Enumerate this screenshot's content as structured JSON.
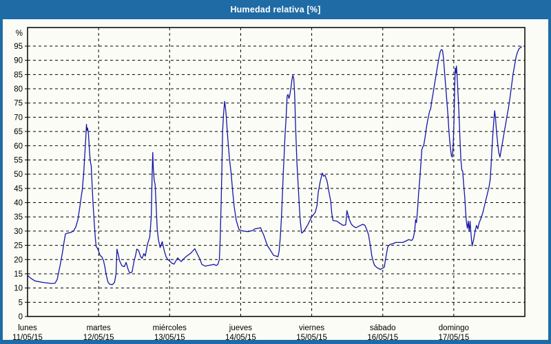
{
  "window": {
    "title": "Humedad relativa [%]"
  },
  "colors": {
    "frame_blue": "#1F6BA5",
    "background": "#FAFCF5",
    "grid_black": "#000000",
    "series_blue": "#1414A8",
    "axis_text": "#000000",
    "title_text": "#FFFFFF"
  },
  "chart_data": {
    "type": "line",
    "title": "Humedad relativa [%]",
    "ylabel": "%",
    "xlabel": "",
    "grid": "dashed",
    "legend_position": "none",
    "y_axis": {
      "min": 0,
      "max": 101.5,
      "tick_step": 5,
      "ticks": [
        0,
        5,
        10,
        15,
        20,
        25,
        30,
        35,
        40,
        45,
        50,
        55,
        60,
        65,
        70,
        75,
        80,
        85,
        90,
        95
      ]
    },
    "x_axis": {
      "unit": "hours_from_monday_00:00",
      "range_hours": [
        0,
        168
      ],
      "days": [
        {
          "name": "lunes",
          "date": "11/05/15"
        },
        {
          "name": "martes",
          "date": "12/05/15"
        },
        {
          "name": "miércoles",
          "date": "13/05/15"
        },
        {
          "name": "jueves",
          "date": "14/05/15"
        },
        {
          "name": "viernes",
          "date": "15/05/15"
        },
        {
          "name": "sábado",
          "date": "16/05/15"
        },
        {
          "name": "domingo",
          "date": "17/05/15"
        }
      ]
    },
    "series": [
      {
        "name": "Humedad relativa",
        "unit": "%",
        "color": "#1414A8",
        "points": [
          [
            0,
            14.5
          ],
          [
            1,
            13.5
          ],
          [
            2.5,
            12.5
          ],
          [
            5,
            12
          ],
          [
            8,
            11.6
          ],
          [
            9.3,
            11.7
          ],
          [
            10,
            13
          ],
          [
            11,
            18
          ],
          [
            11.8,
            22.5
          ],
          [
            12.3,
            26
          ],
          [
            12.8,
            29
          ],
          [
            13.5,
            29.3
          ],
          [
            14.5,
            29.5
          ],
          [
            15.5,
            30
          ],
          [
            16.3,
            31.5
          ],
          [
            17,
            34
          ],
          [
            17.8,
            39.5
          ],
          [
            18.2,
            42.5
          ],
          [
            18.5,
            44.5
          ],
          [
            19,
            51
          ],
          [
            19.4,
            58
          ],
          [
            19.8,
            65
          ],
          [
            19.9,
            67.5
          ],
          [
            20.1,
            65.4
          ],
          [
            20.3,
            66.2
          ],
          [
            20.6,
            64
          ],
          [
            20.9,
            58.5
          ],
          [
            21.2,
            54.5
          ],
          [
            21.5,
            53
          ],
          [
            21.8,
            46.5
          ],
          [
            22.1,
            40
          ],
          [
            22.5,
            33.5
          ],
          [
            22.9,
            27.5
          ],
          [
            23.2,
            24.5
          ],
          [
            23.6,
            24
          ],
          [
            24,
            23
          ],
          [
            24.5,
            21.5
          ],
          [
            25.2,
            20.8
          ],
          [
            25.7,
            19.5
          ],
          [
            26.1,
            17.5
          ],
          [
            26.6,
            14.5
          ],
          [
            27.2,
            12
          ],
          [
            27.8,
            11.3
          ],
          [
            28.7,
            11.2
          ],
          [
            29.4,
            12
          ],
          [
            29.9,
            15
          ],
          [
            30.2,
            23.7
          ],
          [
            30.6,
            22
          ],
          [
            31.1,
            19.5
          ],
          [
            31.9,
            17.8
          ],
          [
            32.7,
            17.5
          ],
          [
            33.3,
            19
          ],
          [
            34,
            16.5
          ],
          [
            34.5,
            15.3
          ],
          [
            35.3,
            15.6
          ],
          [
            36,
            19.5
          ],
          [
            36.5,
            21.5
          ],
          [
            36.9,
            23.7
          ],
          [
            37.5,
            23.2
          ],
          [
            38.2,
            21
          ],
          [
            38.7,
            20.4
          ],
          [
            39.3,
            22.1
          ],
          [
            39.8,
            21.2
          ],
          [
            40.5,
            25.4
          ],
          [
            41.3,
            28
          ],
          [
            41.8,
            35
          ],
          [
            42.1,
            50
          ],
          [
            42.3,
            57.6
          ],
          [
            42.5,
            52
          ],
          [
            42.8,
            47.8
          ],
          [
            43.1,
            46.5
          ],
          [
            43.4,
            40
          ],
          [
            43.8,
            31
          ],
          [
            44.2,
            27
          ],
          [
            44.8,
            24.2
          ],
          [
            45.5,
            26.3
          ],
          [
            46.2,
            23
          ],
          [
            46.8,
            21
          ],
          [
            47.4,
            20
          ],
          [
            48,
            19.5
          ],
          [
            48.8,
            18.7
          ],
          [
            49.5,
            18.4
          ],
          [
            50.7,
            20.6
          ],
          [
            51.9,
            19.3
          ],
          [
            53.5,
            21
          ],
          [
            55.1,
            22.2
          ],
          [
            56.5,
            23.8
          ],
          [
            58.2,
            20.2
          ],
          [
            58.9,
            18.3
          ],
          [
            60,
            17.7
          ],
          [
            61.5,
            18
          ],
          [
            63,
            18.3
          ],
          [
            63.7,
            17.9
          ],
          [
            64.3,
            18.3
          ],
          [
            64.8,
            20
          ],
          [
            65.1,
            28
          ],
          [
            65.4,
            40
          ],
          [
            65.7,
            55
          ],
          [
            65.9,
            65
          ],
          [
            66.2,
            71
          ],
          [
            66.6,
            75.6
          ],
          [
            66.9,
            73
          ],
          [
            67.1,
            70.6
          ],
          [
            67.4,
            66
          ],
          [
            67.7,
            62
          ],
          [
            68.2,
            55.6
          ],
          [
            68.8,
            50
          ],
          [
            69.3,
            44
          ],
          [
            69.8,
            38.6
          ],
          [
            70.5,
            33.8
          ],
          [
            71.4,
            30.6
          ],
          [
            72,
            30.3
          ],
          [
            73,
            30
          ],
          [
            74.5,
            29.8
          ],
          [
            76,
            30.2
          ],
          [
            76.8,
            30.8
          ],
          [
            78,
            31
          ],
          [
            78.7,
            31.2
          ],
          [
            79.8,
            28.6
          ],
          [
            81,
            25
          ],
          [
            82.1,
            23.2
          ],
          [
            83.1,
            21.5
          ],
          [
            84,
            21.2
          ],
          [
            84.6,
            21
          ],
          [
            85,
            23
          ],
          [
            85.4,
            28
          ],
          [
            85.8,
            35
          ],
          [
            86.1,
            42.5
          ],
          [
            86.4,
            50.5
          ],
          [
            86.7,
            57
          ],
          [
            87,
            64
          ],
          [
            87.3,
            69
          ],
          [
            87.7,
            77.5
          ],
          [
            88,
            78
          ],
          [
            88.3,
            76.6
          ],
          [
            88.6,
            77.8
          ],
          [
            89,
            80.5
          ],
          [
            89.3,
            83
          ],
          [
            89.6,
            84.7
          ],
          [
            89.9,
            83.8
          ],
          [
            90.1,
            81
          ],
          [
            90.3,
            76
          ],
          [
            90.5,
            68.6
          ],
          [
            90.8,
            60
          ],
          [
            91,
            54
          ],
          [
            91.3,
            48.4
          ],
          [
            91.6,
            42.7
          ],
          [
            91.9,
            37
          ],
          [
            92.2,
            33
          ],
          [
            92.6,
            29.3
          ],
          [
            93.2,
            29.8
          ],
          [
            93.8,
            30.7
          ],
          [
            94.7,
            32.3
          ],
          [
            96,
            35
          ],
          [
            97.2,
            36.6
          ],
          [
            97.8,
            39
          ],
          [
            98.2,
            43.5
          ],
          [
            98.9,
            47.5
          ],
          [
            99.6,
            50.4
          ],
          [
            100,
            49.3
          ],
          [
            100.5,
            49.6
          ],
          [
            101.2,
            47.5
          ],
          [
            101.9,
            43.4
          ],
          [
            102.4,
            40.6
          ],
          [
            102.8,
            36.1
          ],
          [
            103.2,
            33.7
          ],
          [
            104.5,
            33.5
          ],
          [
            105.4,
            32.8
          ],
          [
            106.6,
            32
          ],
          [
            107.5,
            32.2
          ],
          [
            107.9,
            37.2
          ],
          [
            108.7,
            34
          ],
          [
            109.4,
            32.4
          ],
          [
            110.2,
            31.6
          ],
          [
            111,
            31.2
          ],
          [
            111.7,
            31.6
          ],
          [
            112.5,
            32
          ],
          [
            113.3,
            32.4
          ],
          [
            114,
            32
          ],
          [
            114.7,
            30.3
          ],
          [
            115.2,
            28.7
          ],
          [
            115.6,
            26.2
          ],
          [
            116,
            23.7
          ],
          [
            116.3,
            21.3
          ],
          [
            116.8,
            19.2
          ],
          [
            117.2,
            18
          ],
          [
            118,
            17.2
          ],
          [
            118.7,
            16.8
          ],
          [
            119.2,
            16.5
          ],
          [
            119.6,
            16.8
          ],
          [
            120,
            17
          ],
          [
            120.5,
            17.3
          ],
          [
            121,
            20.4
          ],
          [
            121.7,
            24.5
          ],
          [
            122.6,
            25.4
          ],
          [
            123.3,
            25.5
          ],
          [
            124.4,
            26
          ],
          [
            126.8,
            26
          ],
          [
            128,
            26.6
          ],
          [
            128.7,
            27
          ],
          [
            129.8,
            26.7
          ],
          [
            130.3,
            27.5
          ],
          [
            130.8,
            30
          ],
          [
            131.1,
            34
          ],
          [
            131.4,
            33
          ],
          [
            131.8,
            38
          ],
          [
            132.1,
            43
          ],
          [
            132.5,
            48
          ],
          [
            132.9,
            54
          ],
          [
            133.2,
            58.6
          ],
          [
            133.5,
            59.4
          ],
          [
            133.9,
            60.5
          ],
          [
            134.3,
            63
          ],
          [
            134.7,
            66
          ],
          [
            135.1,
            68.5
          ],
          [
            135.5,
            70.5
          ],
          [
            135.8,
            72
          ],
          [
            136.2,
            73
          ],
          [
            136.6,
            76
          ],
          [
            137,
            78.4
          ],
          [
            137.4,
            81
          ],
          [
            137.8,
            83.5
          ],
          [
            138.2,
            86
          ],
          [
            138.6,
            88.5
          ],
          [
            139,
            91
          ],
          [
            139.4,
            93
          ],
          [
            139.8,
            93.8
          ],
          [
            140.2,
            93.5
          ],
          [
            140.5,
            91
          ],
          [
            140.8,
            87
          ],
          [
            141.1,
            83
          ],
          [
            141.4,
            79
          ],
          [
            141.7,
            75
          ],
          [
            142,
            71
          ],
          [
            142.3,
            66
          ],
          [
            142.6,
            62
          ],
          [
            142.9,
            59
          ],
          [
            143.2,
            56.5
          ],
          [
            143.5,
            56
          ],
          [
            143.8,
            60
          ],
          [
            144.1,
            70
          ],
          [
            144.3,
            80
          ],
          [
            144.5,
            87.2
          ],
          [
            144.7,
            85.6
          ],
          [
            144.9,
            88
          ],
          [
            145.2,
            83
          ],
          [
            145.5,
            77
          ],
          [
            145.8,
            70
          ],
          [
            146.1,
            62
          ],
          [
            146.4,
            55
          ],
          [
            146.7,
            51.5
          ],
          [
            147,
            51
          ],
          [
            147.3,
            47
          ],
          [
            147.7,
            42
          ],
          [
            148,
            37
          ],
          [
            148.3,
            33
          ],
          [
            148.6,
            31
          ],
          [
            148.9,
            33.5
          ],
          [
            149.2,
            29.8
          ],
          [
            149.5,
            33.4
          ],
          [
            149.9,
            28
          ],
          [
            150.2,
            24.8
          ],
          [
            150.7,
            27
          ],
          [
            151.2,
            30
          ],
          [
            151.7,
            32
          ],
          [
            152.1,
            30.8
          ],
          [
            152.6,
            33
          ],
          [
            153.2,
            34.5
          ],
          [
            153.8,
            36.5
          ],
          [
            154.5,
            39.5
          ],
          [
            155.2,
            42.5
          ],
          [
            155.9,
            45.5
          ],
          [
            156.3,
            48
          ],
          [
            156.6,
            53
          ],
          [
            156.9,
            59
          ],
          [
            157.2,
            64
          ],
          [
            157.5,
            68.5
          ],
          [
            157.8,
            72.3
          ],
          [
            158.1,
            69.5
          ],
          [
            158.4,
            65.5
          ],
          [
            158.8,
            61
          ],
          [
            159.2,
            57.5
          ],
          [
            159.6,
            56
          ],
          [
            160,
            58.5
          ],
          [
            160.5,
            61.5
          ],
          [
            161,
            64.5
          ],
          [
            161.5,
            67.5
          ],
          [
            162,
            70.5
          ],
          [
            162.5,
            73.5
          ],
          [
            163,
            77
          ],
          [
            163.5,
            81
          ],
          [
            164,
            85
          ],
          [
            164.5,
            88
          ],
          [
            165,
            91
          ],
          [
            165.5,
            92.8
          ],
          [
            166,
            94
          ],
          [
            166.5,
            94.5
          ],
          [
            167,
            94.8
          ]
        ]
      }
    ]
  }
}
